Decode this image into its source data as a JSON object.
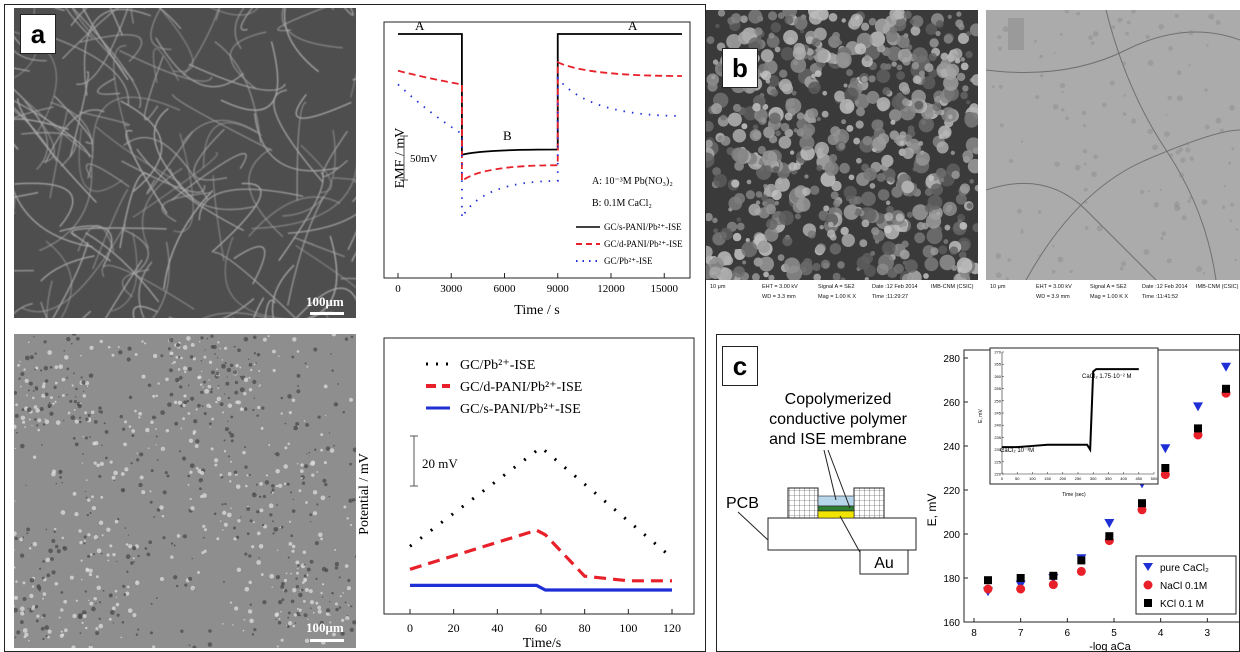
{
  "panels": {
    "a": {
      "label": "a",
      "sem_top_scalebar": "100μm",
      "sem_bottom_scalebar": "100μm",
      "chart_emf": {
        "ylabel": "EMF / mV",
        "xlabel": "Time / s",
        "scale_label": "50mV",
        "segment_labels": [
          "A",
          "B",
          "A"
        ],
        "annotation_A": "A: 10⁻³M Pb(NO₃)₂",
        "annotation_B": "B: 0.1M CaCl₂",
        "legend": [
          "GC/s-PANI/Pb²⁺-ISE",
          "GC/d-PANI/Pb²⁺-ISE",
          "GC/Pb²⁺-ISE"
        ],
        "xticks": [
          "0",
          "3000",
          "6000",
          "9000",
          "12000",
          "15000"
        ]
      },
      "chart_potential": {
        "ylabel": "Potential / mV",
        "xlabel": "Time/s",
        "scale_label": "20 mV",
        "legend": [
          "GC/Pb²⁺-ISE",
          "GC/d-PANI/Pb²⁺-ISE",
          "GC/s-PANI/Pb²⁺-ISE"
        ],
        "xticks": [
          "0",
          "20",
          "40",
          "60",
          "80",
          "100",
          "120"
        ]
      }
    },
    "b": {
      "label": "b",
      "left_footer": [
        "10 μm",
        "EHT = 3.00 kV",
        "WD = 3.3 mm",
        "Signal A = SE2",
        "Mag = 1.00 K X",
        "Date :12 Feb 2014",
        "Time :11:29:27",
        "IMB-CNM (CSIC)"
      ],
      "right_footer": [
        "10 μm",
        "EHT = 3.00 kV",
        "WD = 3.9 mm",
        "Signal A = SE2",
        "Mag = 1.00 K X",
        "Date :12 Feb 2014",
        "Time :11:41:52",
        "IMB-CNM (CSIC)"
      ]
    },
    "c": {
      "label": "c",
      "schematic_title": [
        "Copolymerized",
        "conductive polymer",
        "and ISE membrane"
      ],
      "pcb_label": "PCB",
      "au_label": "Au",
      "chart_e": {
        "ylabel": "E, mV",
        "xlabel": "-log aCa",
        "yticks": [
          "160",
          "180",
          "200",
          "220",
          "240",
          "260",
          "280"
        ],
        "xticks": [
          "8",
          "7",
          "6",
          "5",
          "4",
          "3",
          "2"
        ],
        "legend": [
          "pure CaCl₂",
          "NaCl 0.1M",
          "KCl 0.1 M"
        ],
        "inset": {
          "ylabel": "E, mV",
          "xlabel": "Time (sec)",
          "yticks": [
            "220",
            "225",
            "230",
            "235",
            "240",
            "245",
            "250",
            "255",
            "260",
            "265",
            "270"
          ],
          "xticks": [
            "0",
            "50",
            "100",
            "150",
            "200",
            "250",
            "300",
            "350",
            "400",
            "450",
            "500"
          ],
          "label_low": "CaCl₂ 10⁻³M",
          "label_high": "CaCl₂ 1.75·10⁻² M"
        }
      }
    }
  },
  "chart_data": [
    {
      "type": "line",
      "ylabel": "EMF / mV",
      "xlabel": "Time / s",
      "x": [
        0,
        3600,
        3600,
        9000,
        9000,
        16000
      ],
      "series": [
        {
          "name": "GC/s-PANI/Pb²⁺-ISE",
          "style": "solid",
          "color": "#000000",
          "rel": [
            0,
            0,
            -115,
            -110,
            0,
            0
          ]
        },
        {
          "name": "GC/d-PANI/Pb²⁺-ISE",
          "style": "dashed",
          "color": "#e8202a",
          "rel": [
            -35,
            -48,
            -140,
            -125,
            -27,
            -40
          ]
        },
        {
          "name": "GC/Pb²⁺-ISE",
          "style": "dotted",
          "color": "#1f2fd6",
          "rel": [
            -48,
            -95,
            -175,
            -140,
            -42,
            -78
          ]
        }
      ],
      "xlim": [
        0,
        16000
      ]
    },
    {
      "type": "line",
      "ylabel": "Potential / mV",
      "xlabel": "Time/s",
      "xlim": [
        0,
        120
      ],
      "series": [
        {
          "name": "GC/Pb²⁺-ISE",
          "style": "dotted",
          "color": "#000000",
          "x": [
            0,
            60,
            120
          ],
          "y": [
            19,
            62,
            14
          ]
        },
        {
          "name": "GC/d-PANI/Pb²⁺-ISE",
          "style": "dashed",
          "color": "#e8202a",
          "x": [
            0,
            58,
            62,
            80,
            100,
            120
          ],
          "y": [
            9,
            26,
            24,
            6,
            4,
            4
          ]
        },
        {
          "name": "GC/s-PANI/Pb²⁺-ISE",
          "style": "solid",
          "color": "#1f2fd6",
          "x": [
            0,
            58,
            62,
            120
          ],
          "y": [
            2,
            2,
            0,
            0
          ]
        }
      ]
    },
    {
      "type": "scatter",
      "ylabel": "E, mV",
      "xlabel": "-log aCa",
      "ylim": [
        160,
        280
      ],
      "xlim": [
        8,
        2
      ],
      "series": [
        {
          "name": "pure CaCl₂",
          "marker": "triangle-down",
          "color": "#1f2fd6",
          "x": [
            7.7,
            7.0,
            6.3,
            5.7,
            5.1,
            4.4,
            3.9,
            3.2,
            2.6
          ],
          "y": [
            174,
            177,
            180,
            189,
            205,
            223,
            239,
            258,
            276
          ]
        },
        {
          "name": "NaCl 0.1M",
          "marker": "circle",
          "color": "#e8202a",
          "x": [
            7.7,
            7.0,
            6.3,
            5.7,
            5.1,
            4.4,
            3.9,
            3.2,
            2.6
          ],
          "y": [
            175,
            175,
            177,
            183,
            197,
            211,
            227,
            245,
            264
          ]
        },
        {
          "name": "KCl 0.1 M",
          "marker": "square",
          "color": "#000000",
          "x": [
            7.7,
            7.0,
            6.3,
            5.7,
            5.1,
            4.4,
            3.9,
            3.2,
            2.6
          ],
          "y": [
            179,
            180,
            181,
            188,
            199,
            214,
            230,
            248,
            266
          ]
        }
      ]
    },
    {
      "type": "line",
      "ylabel": "E, mV",
      "xlabel": "Time (sec)",
      "xlim": [
        0,
        500
      ],
      "ylim": [
        220,
        270
      ],
      "series": [
        {
          "name": "inset",
          "color": "#000000",
          "x": [
            0,
            50,
            100,
            150,
            200,
            250,
            280,
            290,
            300,
            310,
            320,
            350,
            400,
            450
          ],
          "y": [
            231,
            231,
            231.5,
            232,
            232,
            232,
            232,
            230,
            262,
            263,
            263,
            263,
            263,
            263
          ]
        }
      ]
    }
  ]
}
